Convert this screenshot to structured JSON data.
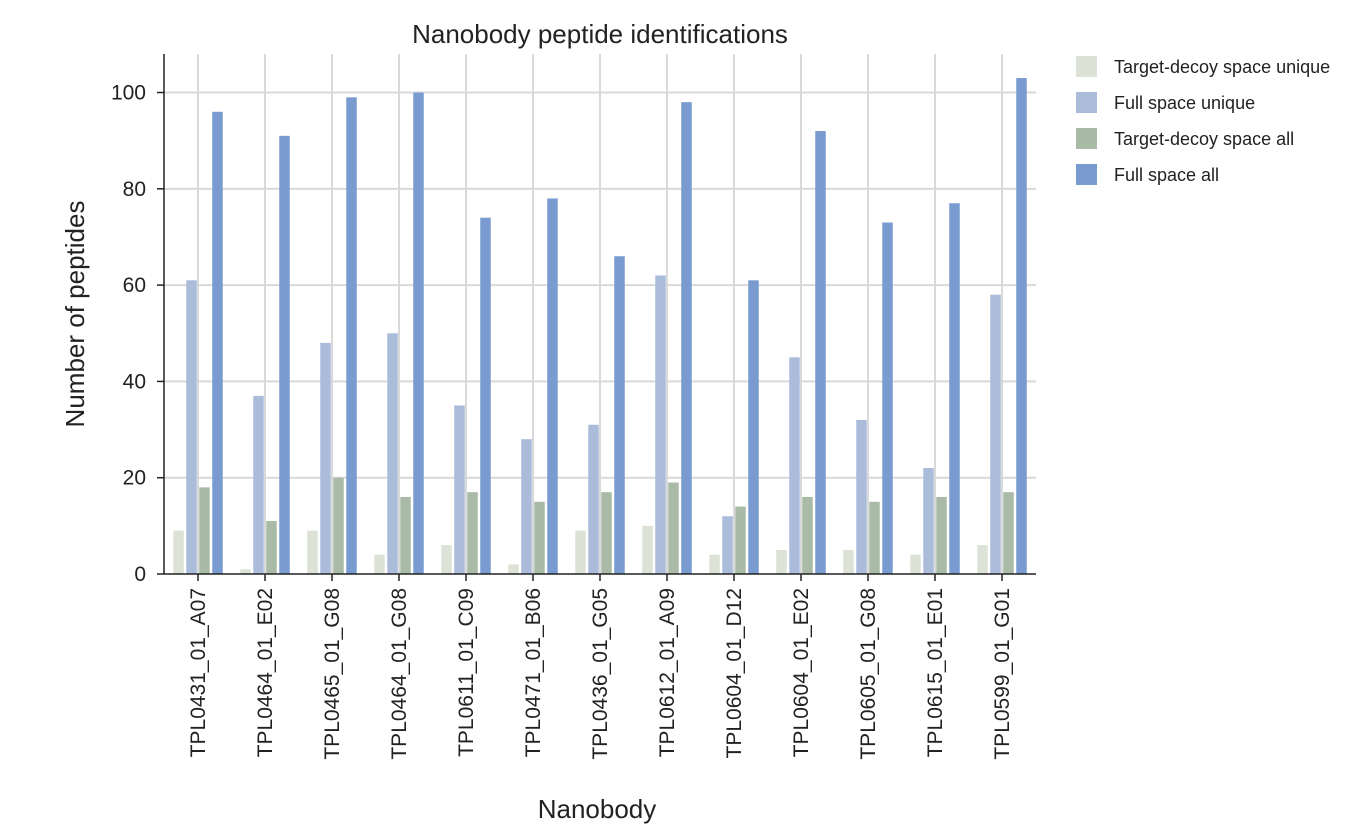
{
  "chart_data": {
    "type": "bar",
    "title": "Nanobody peptide identifications",
    "xlabel": "Nanobody",
    "ylabel": "Number of peptides",
    "ylim": [
      0,
      108
    ],
    "yticks": [
      "0",
      "20",
      "40",
      "60",
      "80",
      "100"
    ],
    "grid": true,
    "legend_position": "right",
    "categories": [
      "TPL0431_01_A07",
      "TPL0464_01_E02",
      "TPL0465_01_G08",
      "TPL0464_01_G08",
      "TPL0611_01_C09",
      "TPL0471_01_B06",
      "TPL0436_01_G05",
      "TPL0612_01_A09",
      "TPL0604_01_D12",
      "TPL0604_01_E02",
      "TPL0605_01_G08",
      "TPL0615_01_E01",
      "TPL0599_01_G01"
    ],
    "series": [
      {
        "name": "Target-decoy space unique",
        "color": "#dde2d6",
        "values": [
          9,
          1,
          9,
          4,
          6,
          2,
          9,
          10,
          4,
          5,
          5,
          4,
          6
        ]
      },
      {
        "name": "Full space unique",
        "color": "#abbcdb",
        "values": [
          61,
          37,
          48,
          50,
          35,
          28,
          31,
          62,
          12,
          45,
          32,
          22,
          58
        ]
      },
      {
        "name": "Target-decoy space all",
        "color": "#a9bba7",
        "values": [
          18,
          11,
          20,
          16,
          17,
          15,
          17,
          19,
          14,
          16,
          15,
          16,
          17
        ]
      },
      {
        "name": "Full space all",
        "color": "#7a9bcf",
        "values": [
          96,
          91,
          99,
          100,
          74,
          78,
          66,
          98,
          61,
          92,
          73,
          77,
          103
        ]
      }
    ]
  }
}
